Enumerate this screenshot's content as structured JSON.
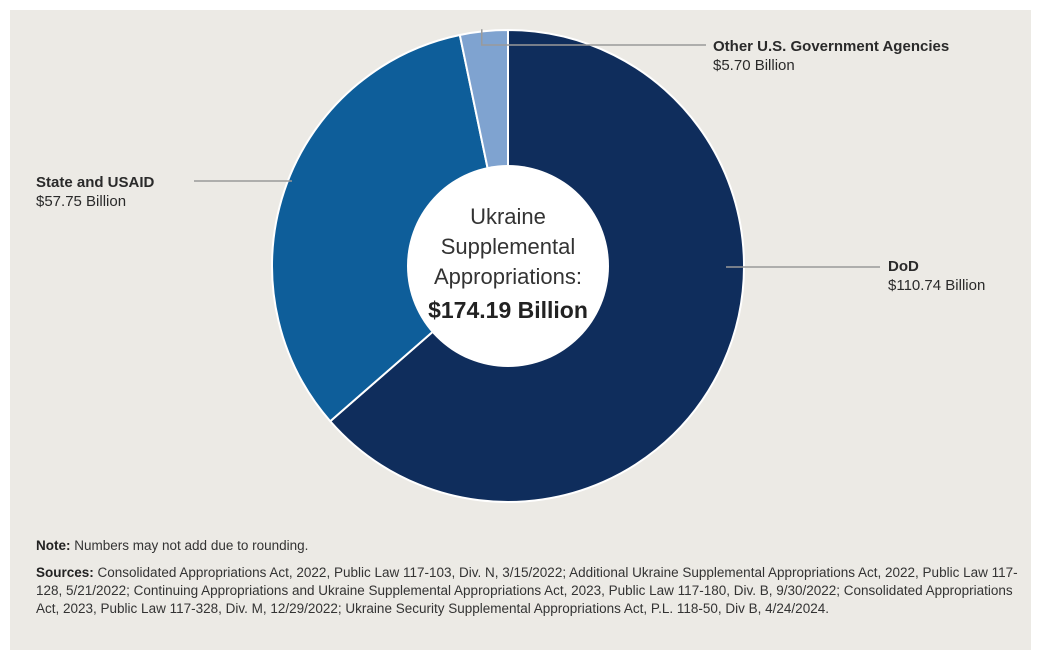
{
  "chart_data": {
    "type": "pie",
    "title": "Ukraine Supplemental Appropriations:",
    "total_label": "$174.19 Billion",
    "slices": [
      {
        "name": "DoD",
        "value": 110.74,
        "value_label": "$110.74 Billion",
        "color": "#0f2d5c"
      },
      {
        "name": "State and USAID",
        "value": 57.75,
        "value_label": "$57.75 Billion",
        "color": "#0e5e9a"
      },
      {
        "name": "Other U.S. Government Agencies",
        "value": 5.7,
        "value_label": "$5.70 Billion",
        "color": "#7fa3d0"
      }
    ]
  },
  "center": {
    "line1": "Ukraine",
    "line2": "Supplemental",
    "line3": "Appropriations:",
    "total": "$174.19 Billion"
  },
  "notes": {
    "note_label": "Note:",
    "note_text": " Numbers may not add due to rounding.",
    "sources_label": "Sources:",
    "sources_text": " Consolidated Appropriations Act, 2022, Public Law 117-103, Div. N, 3/15/2022; Additional Ukraine Supplemental Appropriations Act, 2022, Public Law 117-128, 5/21/2022; Continuing Appropriations and Ukraine Supplemental Appropriations Act, 2023, Public Law 117-180, Div. B, 9/30/2022; Consolidated Appropriations Act, 2023, Public Law 117-328, Div. M, 12/29/2022; Ukraine Security Supplemental Appropriations Act, P.L. 118-50, Div B, 4/24/2024."
  }
}
